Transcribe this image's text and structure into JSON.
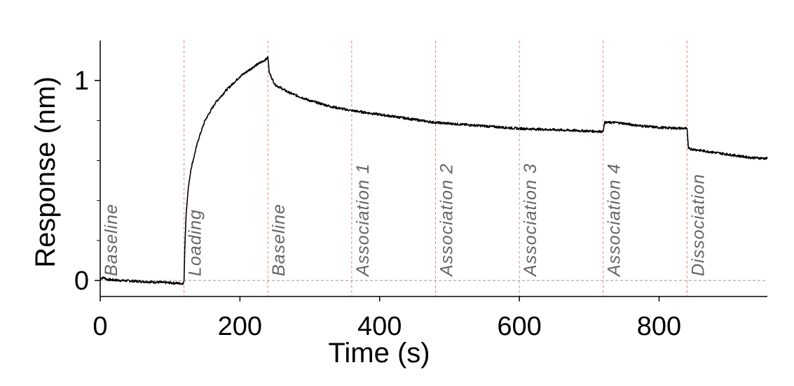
{
  "chart_data": {
    "type": "line",
    "xlabel": "Time (s)",
    "ylabel": "Response (nm)",
    "xlim": [
      0,
      955
    ],
    "ylim": [
      -0.08,
      1.2
    ],
    "x_ticks": [
      0,
      200,
      400,
      600,
      800
    ],
    "y_ticks": [
      0,
      1
    ],
    "y_minor_ticks": [
      0.2,
      0.4,
      0.6,
      0.8,
      1.0
    ],
    "reference_line_y": 0,
    "step_boundaries": [
      120,
      240,
      360,
      480,
      600,
      720,
      840
    ],
    "steps": [
      {
        "label": "Baseline",
        "start": 0
      },
      {
        "label": "Loading",
        "start": 120
      },
      {
        "label": "Baseline",
        "start": 240
      },
      {
        "label": "Association 1",
        "start": 360
      },
      {
        "label": "Association 2",
        "start": 480
      },
      {
        "label": "Association 3",
        "start": 600
      },
      {
        "label": "Association 4",
        "start": 720
      },
      {
        "label": "Dissociation",
        "start": 840
      }
    ],
    "series": [
      {
        "color": "#000000",
        "points": [
          [
            0,
            0.01
          ],
          [
            5,
            0.015
          ],
          [
            10,
            0.005
          ],
          [
            30,
            0.0
          ],
          [
            60,
            -0.005
          ],
          [
            90,
            -0.01
          ],
          [
            119,
            -0.015
          ],
          [
            120,
            0.0
          ],
          [
            121,
            0.15
          ],
          [
            123,
            0.33
          ],
          [
            126,
            0.46
          ],
          [
            130,
            0.56
          ],
          [
            140,
            0.7
          ],
          [
            150,
            0.8
          ],
          [
            165,
            0.89
          ],
          [
            180,
            0.95
          ],
          [
            200,
            1.02
          ],
          [
            220,
            1.07
          ],
          [
            239,
            1.11
          ],
          [
            240,
            1.12
          ],
          [
            242,
            1.04
          ],
          [
            250,
            0.98
          ],
          [
            270,
            0.94
          ],
          [
            300,
            0.9
          ],
          [
            330,
            0.87
          ],
          [
            359,
            0.85
          ],
          [
            360,
            0.85
          ],
          [
            400,
            0.83
          ],
          [
            440,
            0.81
          ],
          [
            479,
            0.79
          ],
          [
            480,
            0.79
          ],
          [
            520,
            0.78
          ],
          [
            560,
            0.77
          ],
          [
            599,
            0.76
          ],
          [
            600,
            0.76
          ],
          [
            640,
            0.755
          ],
          [
            680,
            0.75
          ],
          [
            719,
            0.745
          ],
          [
            720,
            0.745
          ],
          [
            722,
            0.79
          ],
          [
            740,
            0.79
          ],
          [
            770,
            0.775
          ],
          [
            800,
            0.765
          ],
          [
            839,
            0.76
          ],
          [
            840,
            0.76
          ],
          [
            842,
            0.66
          ],
          [
            860,
            0.65
          ],
          [
            900,
            0.63
          ],
          [
            930,
            0.615
          ],
          [
            955,
            0.61
          ]
        ]
      }
    ]
  }
}
